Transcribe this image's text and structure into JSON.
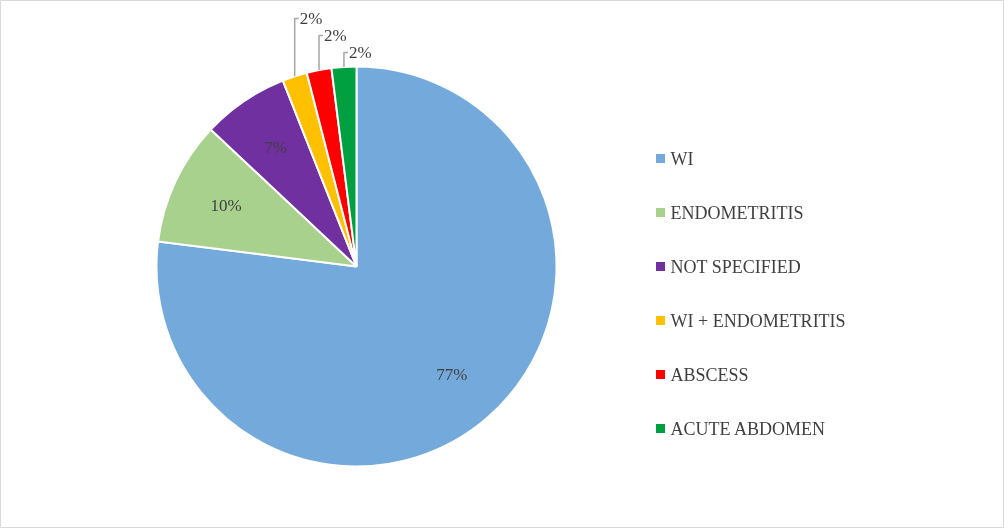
{
  "chart_data": {
    "type": "pie",
    "categories": [
      "WI",
      "ENDOMETRITIS",
      "NOT SPECIFIED",
      "WI + ENDOMETRITIS",
      "ABSCESS",
      "ACUTE ABDOMEN"
    ],
    "values": [
      77,
      10,
      7,
      2,
      2,
      2
    ],
    "colors": [
      "#74a9db",
      "#a9d18e",
      "#7030a0",
      "#ffc000",
      "#ff0000",
      "#00a040"
    ],
    "data_labels": true,
    "value_labels": [
      "77%",
      "10%",
      "7%",
      "2%",
      "2%",
      "2%"
    ],
    "legend": "right"
  }
}
